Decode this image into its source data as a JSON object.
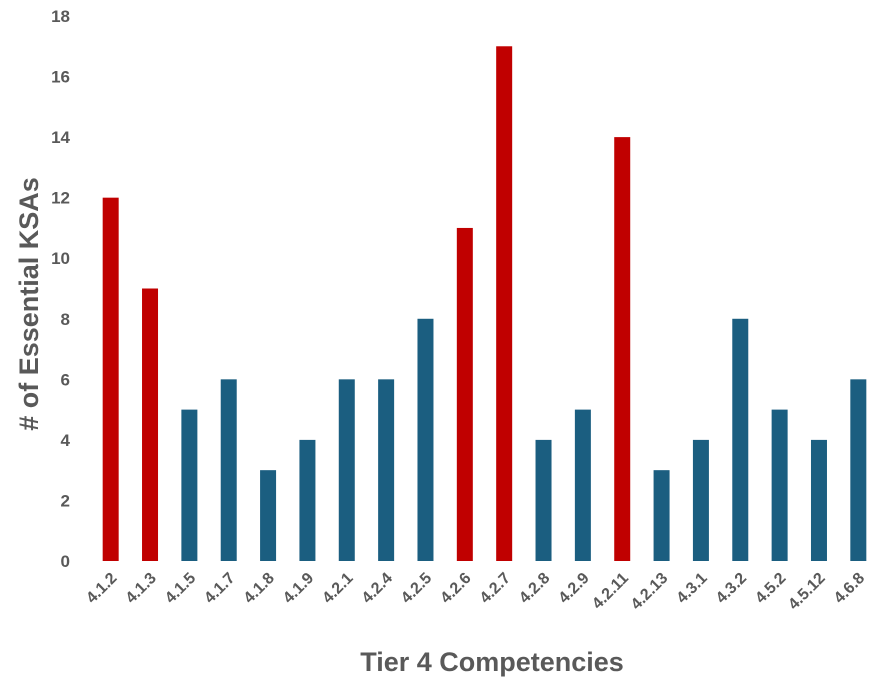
{
  "chart_data": {
    "type": "bar",
    "title": "",
    "xlabel": "Tier 4 Competencies",
    "ylabel": "# of Essential KSAs",
    "ylim": [
      0,
      18
    ],
    "yticks": [
      0,
      2,
      4,
      6,
      8,
      10,
      12,
      14,
      16,
      18
    ],
    "grid": false,
    "legend": "none",
    "categories": [
      "4.1.2",
      "4.1.3",
      "4.1.5",
      "4.1.7",
      "4.1.8",
      "4.1.9",
      "4.2.1",
      "4.2.4",
      "4.2.5",
      "4.2.6",
      "4.2.7",
      "4.2.8",
      "4.2.9",
      "4.2.11",
      "4.2.13",
      "4.3.1",
      "4.3.2",
      "4.5.2",
      "4.5.12",
      "4.6.8"
    ],
    "values": [
      12,
      9,
      5,
      6,
      3,
      4,
      6,
      6,
      8,
      11,
      17,
      4,
      5,
      14,
      3,
      4,
      8,
      5,
      4,
      6
    ],
    "highlighted": [
      true,
      true,
      false,
      false,
      false,
      false,
      false,
      false,
      false,
      true,
      true,
      false,
      false,
      true,
      false,
      false,
      false,
      false,
      false,
      false
    ],
    "colors": {
      "highlight": "#C00000",
      "default": "#1B5E80",
      "text": "#595959"
    }
  }
}
